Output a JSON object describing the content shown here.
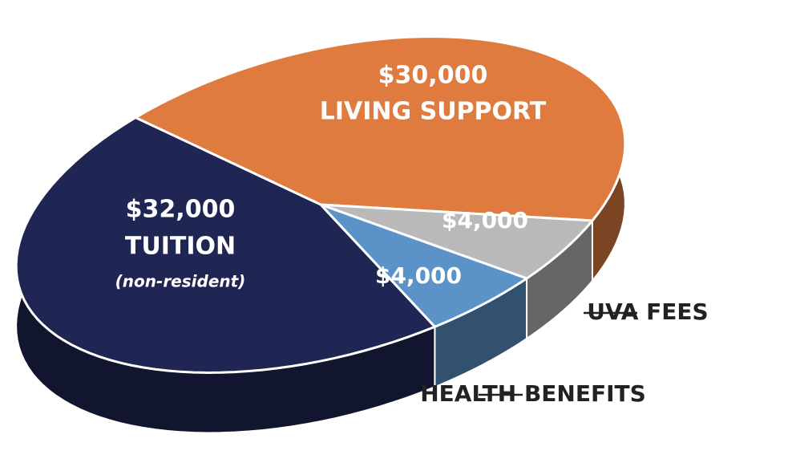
{
  "chart_data": {
    "type": "pie",
    "categories": [
      "LIVING SUPPORT",
      "UVA FEES",
      "HEALTH BENEFITS",
      "TUITION"
    ],
    "values": [
      30000,
      4000,
      4000,
      32000
    ],
    "value_labels": [
      "$30,000",
      "$4,000",
      "$4,000",
      "$32,000"
    ],
    "colors": [
      "#df7b3e",
      "#b9b9b9",
      "#5b93c9",
      "#202654"
    ],
    "annotation": "(non-resident)"
  }
}
